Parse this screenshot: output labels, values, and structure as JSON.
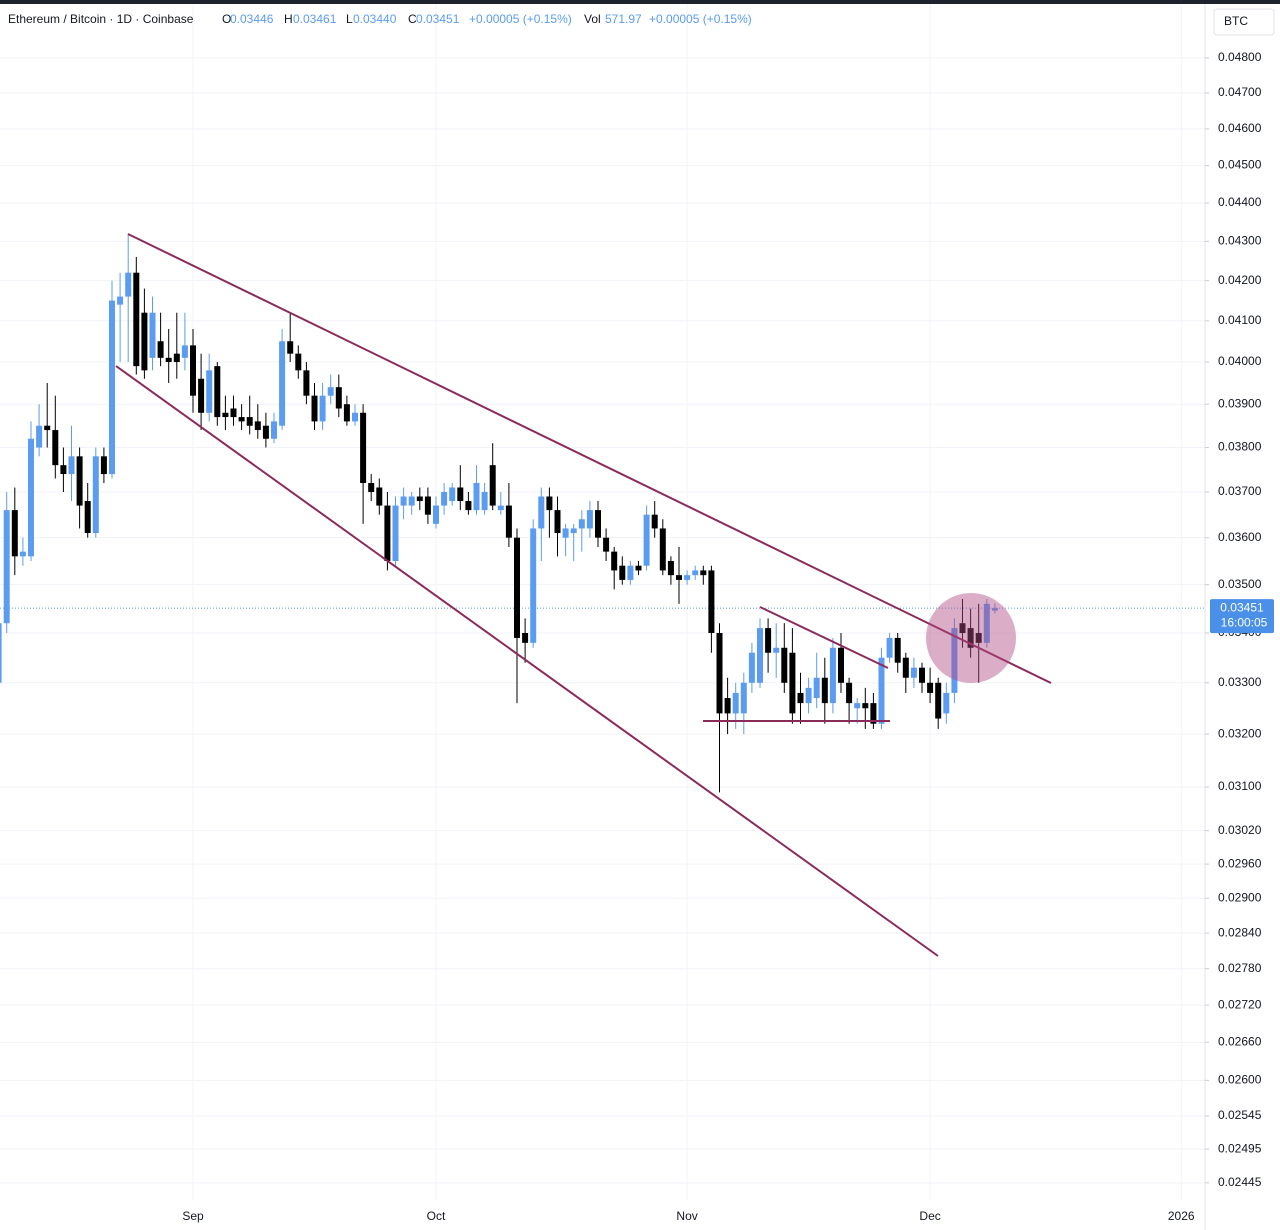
{
  "chart_data": {
    "type": "candlestick",
    "legend": {
      "title": "Ethereum / Bitcoin · 1D · Coinbase",
      "o_label": "O",
      "open": "0.03446",
      "h_label": "H",
      "high": "0.03461",
      "l_label": "L",
      "low": "0.03440",
      "c_label": "C",
      "close": "0.03451",
      "change": "+0.00005 (+0.15%)",
      "vol_label": "Vol",
      "volume": "571.97",
      "vol_change": "+0.00005 (+0.15%)"
    },
    "currency": "BTC",
    "last_price": {
      "value": 0.03451,
      "label": "0.03451"
    },
    "countdown": "16:00:05",
    "log_scale": true,
    "grid": true,
    "up_color": "#5b9cf0",
    "down_color": "#000000",
    "ylim": [
      0.0242,
      0.0494
    ],
    "yticks": [
      {
        "value": 0.048,
        "label": "0.04800"
      },
      {
        "value": 0.047,
        "label": "0.04700"
      },
      {
        "value": 0.046,
        "label": "0.04600"
      },
      {
        "value": 0.045,
        "label": "0.04500"
      },
      {
        "value": 0.044,
        "label": "0.04400"
      },
      {
        "value": 0.043,
        "label": "0.04300"
      },
      {
        "value": 0.042,
        "label": "0.04200"
      },
      {
        "value": 0.041,
        "label": "0.04100"
      },
      {
        "value": 0.04,
        "label": "0.04000"
      },
      {
        "value": 0.039,
        "label": "0.03900"
      },
      {
        "value": 0.038,
        "label": "0.03800"
      },
      {
        "value": 0.037,
        "label": "0.03700"
      },
      {
        "value": 0.036,
        "label": "0.03600"
      },
      {
        "value": 0.035,
        "label": "0.03500"
      },
      {
        "value": 0.034,
        "label": "0.03400"
      },
      {
        "value": 0.033,
        "label": "0.03300"
      },
      {
        "value": 0.032,
        "label": "0.03200"
      },
      {
        "value": 0.031,
        "label": "0.03100"
      },
      {
        "value": 0.0302,
        "label": "0.03020"
      },
      {
        "value": 0.0296,
        "label": "0.02960"
      },
      {
        "value": 0.029,
        "label": "0.02900"
      },
      {
        "value": 0.0284,
        "label": "0.02840"
      },
      {
        "value": 0.0278,
        "label": "0.02780"
      },
      {
        "value": 0.0272,
        "label": "0.02720"
      },
      {
        "value": 0.0266,
        "label": "0.02660"
      },
      {
        "value": 0.026,
        "label": "0.02600"
      },
      {
        "value": 0.02545,
        "label": "0.02545"
      },
      {
        "value": 0.02495,
        "label": "0.02495"
      },
      {
        "value": 0.02445,
        "label": "0.02445"
      }
    ],
    "categories": [
      null,
      null,
      null,
      null,
      null,
      null,
      null,
      null,
      null,
      null,
      null,
      null,
      null,
      null,
      null,
      null,
      null,
      null,
      null,
      null,
      null,
      null,
      null,
      null,
      "Sep",
      null,
      null,
      null,
      null,
      null,
      null,
      null,
      null,
      null,
      null,
      null,
      null,
      null,
      null,
      null,
      null,
      null,
      null,
      null,
      null,
      null,
      null,
      null,
      null,
      null,
      null,
      null,
      null,
      null,
      "Oct",
      null,
      null,
      null,
      null,
      null,
      null,
      null,
      null,
      null,
      null,
      null,
      null,
      null,
      null,
      null,
      null,
      null,
      null,
      null,
      null,
      null,
      null,
      null,
      null,
      null,
      null,
      null,
      null,
      null,
      null,
      "Nov",
      null,
      null,
      null,
      null,
      null,
      null,
      null,
      null,
      null,
      null,
      null,
      null,
      null,
      null,
      null,
      null,
      null,
      null,
      null,
      null,
      null,
      null,
      null,
      null,
      null,
      null,
      null,
      null,
      null,
      "Dec",
      null,
      null,
      null,
      null,
      null,
      null,
      null,
      null,
      null,
      null,
      null,
      null,
      null,
      null,
      null,
      null,
      null,
      null,
      null,
      null,
      null,
      null,
      null,
      null,
      null,
      null,
      null,
      null,
      null,
      null,
      "2026",
      null,
      null
    ],
    "open": [
      0.033,
      0.0342,
      0.0366,
      0.0356,
      0.0356,
      0.038,
      0.0385,
      0.0384,
      0.0376,
      0.0374,
      0.0378,
      0.0368,
      0.0361,
      0.0378,
      0.0374,
      0.0414,
      0.0416,
      0.0422,
      0.0412,
      0.0401,
      0.0405,
      0.0401,
      0.0402,
      0.0401,
      0.0404,
      0.0396,
      0.0388,
      0.0399,
      0.0388,
      0.0389,
      0.0387,
      0.0387,
      0.0386,
      0.0385,
      0.0382,
      0.0385,
      0.0405,
      0.0402,
      0.0398,
      0.0392,
      0.0386,
      0.0392,
      0.0394,
      0.039,
      0.0386,
      0.0388,
      0.0372,
      0.0371,
      0.0367,
      0.0355,
      0.0367,
      0.0367,
      0.0369,
      0.0369,
      0.0363,
      0.0367,
      0.0368,
      0.0371,
      0.0368,
      0.0366,
      0.0366,
      0.0376,
      0.0366,
      0.0367,
      0.036,
      0.034,
      0.0338,
      0.0362,
      0.0369,
      0.0366,
      0.036,
      0.0361,
      0.0362,
      0.0362,
      0.0366,
      0.036,
      0.0357,
      0.0354,
      0.0351,
      0.0354,
      0.0354,
      0.0365,
      0.0362,
      0.0355,
      0.0352,
      0.0351,
      0.0352,
      0.0353,
      0.0353,
      0.034,
      0.0327,
      0.0324,
      0.0324,
      0.033,
      0.033,
      0.0341,
      0.0336,
      0.0337,
      0.0336,
      0.0328,
      0.0326,
      0.0327,
      0.0331,
      0.0326,
      0.0337,
      0.033,
      0.0325,
      0.0326,
      0.0326,
      0.0322,
      0.0335,
      0.0339,
      0.0335,
      0.0331,
      0.0333,
      0.033,
      0.033,
      0.0324,
      0.0328,
      0.0342,
      0.0341,
      0.034,
      0.0338,
      0.03446,
      null,
      null,
      null,
      null,
      null,
      null,
      null,
      null,
      null,
      null,
      null,
      null,
      null,
      null,
      null,
      null,
      null,
      null,
      null,
      null,
      null,
      null,
      null,
      null,
      null
    ],
    "high": [
      0.0345,
      0.037,
      0.0371,
      0.036,
      0.0386,
      0.039,
      0.0395,
      0.0392,
      0.038,
      0.0385,
      0.038,
      0.0372,
      0.038,
      0.038,
      0.042,
      0.0422,
      0.0432,
      0.0426,
      0.0418,
      0.0416,
      0.0412,
      0.0408,
      0.0412,
      0.0412,
      0.0408,
      0.0402,
      0.0402,
      0.04,
      0.0392,
      0.0392,
      0.039,
      0.0392,
      0.039,
      0.0388,
      0.0388,
      0.0408,
      0.0412,
      0.0404,
      0.04,
      0.0395,
      0.0395,
      0.0397,
      0.0397,
      0.0392,
      0.039,
      0.039,
      0.0374,
      0.0373,
      0.037,
      0.0369,
      0.0371,
      0.037,
      0.0371,
      0.0371,
      0.0369,
      0.0372,
      0.0372,
      0.0376,
      0.037,
      0.0376,
      0.0372,
      0.0381,
      0.037,
      0.0372,
      0.0362,
      0.0343,
      0.0364,
      0.0371,
      0.0371,
      0.0369,
      0.0363,
      0.0363,
      0.0366,
      0.0368,
      0.0368,
      0.0362,
      0.0358,
      0.0356,
      0.0355,
      0.0355,
      0.0367,
      0.0368,
      0.0364,
      0.0356,
      0.0358,
      0.0353,
      0.0354,
      0.0354,
      0.0354,
      0.0342,
      0.0331,
      0.033,
      0.0332,
      0.0338,
      0.0343,
      0.0343,
      0.0342,
      0.0342,
      0.0341,
      0.0332,
      0.0331,
      0.0336,
      0.0335,
      0.0339,
      0.034,
      0.0331,
      0.0327,
      0.0329,
      0.0328,
      0.0337,
      0.034,
      0.034,
      0.0336,
      0.0335,
      0.0334,
      0.0333,
      0.0331,
      0.033,
      0.0343,
      0.0347,
      0.0345,
      0.0346,
      0.0347,
      0.03461,
      null,
      null,
      null,
      null,
      null,
      null,
      null,
      null,
      null,
      null,
      null,
      null,
      null,
      null,
      null,
      null,
      null,
      null,
      null,
      null,
      null,
      null,
      null,
      null,
      null
    ],
    "low": [
      0.0328,
      0.034,
      0.0352,
      0.0354,
      0.0355,
      0.0378,
      0.038,
      0.0373,
      0.037,
      0.0368,
      0.0362,
      0.036,
      0.036,
      0.0372,
      0.0373,
      0.04,
      0.04,
      0.0397,
      0.0396,
      0.0398,
      0.0399,
      0.0395,
      0.0396,
      0.0398,
      0.0388,
      0.0384,
      0.0386,
      0.0385,
      0.0384,
      0.0385,
      0.0384,
      0.0383,
      0.0382,
      0.038,
      0.0381,
      0.0384,
      0.04,
      0.0396,
      0.039,
      0.0384,
      0.0384,
      0.039,
      0.0387,
      0.0385,
      0.0385,
      0.0363,
      0.0368,
      0.0365,
      0.0353,
      0.0354,
      0.0364,
      0.0365,
      0.0366,
      0.0363,
      0.0362,
      0.0365,
      0.0367,
      0.0366,
      0.0365,
      0.0365,
      0.0365,
      0.0366,
      0.0365,
      0.0358,
      0.0326,
      0.0334,
      0.0337,
      0.0355,
      0.036,
      0.0356,
      0.0356,
      0.0355,
      0.0357,
      0.036,
      0.0358,
      0.0355,
      0.0349,
      0.035,
      0.035,
      0.0352,
      0.0353,
      0.036,
      0.0352,
      0.035,
      0.0346,
      0.035,
      0.0351,
      0.035,
      0.0336,
      0.0309,
      0.032,
      0.0321,
      0.032,
      0.0328,
      0.0329,
      0.0332,
      0.0331,
      0.0328,
      0.0322,
      0.0322,
      0.0324,
      0.0325,
      0.0322,
      0.0324,
      0.0328,
      0.0322,
      0.0322,
      0.0321,
      0.0321,
      0.0321,
      0.0334,
      0.0332,
      0.0328,
      0.0329,
      0.0328,
      0.0326,
      0.0321,
      0.0322,
      0.0326,
      0.0337,
      0.0335,
      0.033,
      0.0337,
      0.0344,
      null,
      null,
      null,
      null,
      null,
      null,
      null,
      null,
      null,
      null,
      null,
      null,
      null,
      null,
      null,
      null,
      null,
      null,
      null,
      null,
      null,
      null,
      null,
      null,
      null
    ],
    "close": [
      0.0342,
      0.0366,
      0.0356,
      0.0357,
      0.0382,
      0.0385,
      0.0384,
      0.0376,
      0.0374,
      0.0378,
      0.0367,
      0.0361,
      0.0378,
      0.0374,
      0.0415,
      0.0416,
      0.0422,
      0.0399,
      0.0398,
      0.0412,
      0.0401,
      0.04,
      0.04,
      0.0404,
      0.0392,
      0.0388,
      0.0398,
      0.0387,
      0.0387,
      0.0387,
      0.0386,
      0.0385,
      0.0384,
      0.0382,
      0.0386,
      0.0405,
      0.0402,
      0.0398,
      0.0392,
      0.0386,
      0.0392,
      0.0394,
      0.0389,
      0.0386,
      0.0388,
      0.0372,
      0.037,
      0.0367,
      0.0355,
      0.0367,
      0.0369,
      0.0369,
      0.0368,
      0.0365,
      0.0367,
      0.037,
      0.0371,
      0.0368,
      0.0366,
      0.0372,
      0.037,
      0.0367,
      0.0367,
      0.036,
      0.0339,
      0.0338,
      0.0362,
      0.0369,
      0.0366,
      0.0361,
      0.0362,
      0.0362,
      0.0364,
      0.0366,
      0.036,
      0.0357,
      0.0353,
      0.0351,
      0.0354,
      0.0353,
      0.0365,
      0.0362,
      0.0353,
      0.0352,
      0.0351,
      0.0352,
      0.0353,
      0.0352,
      0.034,
      0.0324,
      0.0324,
      0.0328,
      0.033,
      0.0336,
      0.0341,
      0.0336,
      0.0337,
      0.033,
      0.0324,
      0.0326,
      0.0329,
      0.0331,
      0.0326,
      0.0337,
      0.033,
      0.0326,
      0.0326,
      0.0325,
      0.0322,
      0.0335,
      0.0339,
      0.0334,
      0.0331,
      0.0333,
      0.033,
      0.0328,
      0.0323,
      0.0328,
      0.0341,
      0.034,
      0.0337,
      0.0338,
      0.0346,
      0.03451,
      null,
      null,
      null,
      null,
      null,
      null,
      null,
      null,
      null,
      null,
      null,
      null,
      null,
      null,
      null,
      null,
      null,
      null,
      null,
      null,
      null,
      null,
      null,
      null,
      null
    ]
  }
}
